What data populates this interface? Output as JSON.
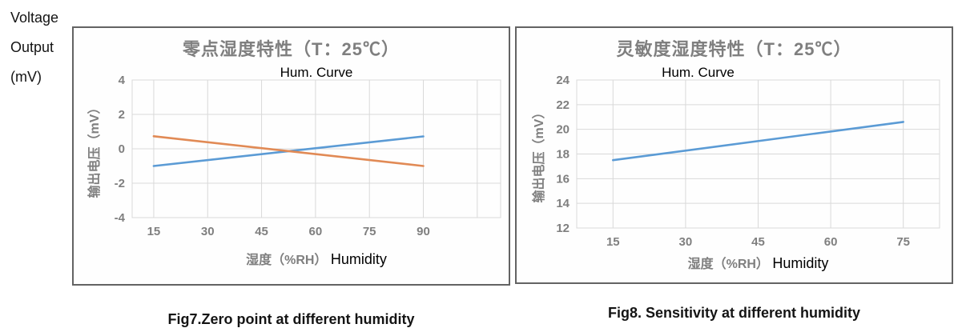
{
  "corner_label": {
    "lines": [
      "Voltage",
      "Output",
      "(mV)"
    ]
  },
  "chart_data": [
    {
      "type": "line",
      "title": "零点湿度特性（T：25℃）",
      "subtitle": "Hum. Curve",
      "ylabel": "输出电压（mV）",
      "xlabel": "湿度（%RH）",
      "xlabel_annotation": "Humidity",
      "caption": "Fig7.Zero point at different humidity",
      "xlim": [
        9,
        111.5
      ],
      "ylim": [
        -4,
        4
      ],
      "xticks": [
        15,
        30,
        45,
        60,
        75,
        90
      ],
      "xgrid": [
        15,
        30,
        45,
        60,
        75,
        90,
        105
      ],
      "yticks": [
        -4,
        -2,
        0,
        2,
        4
      ],
      "grid": true,
      "legend": "none",
      "series": [
        {
          "name": "zero-point-rising-line",
          "color": "#5B9BD5",
          "x": [
            15,
            90
          ],
          "y": [
            -1.0,
            0.72
          ]
        },
        {
          "name": "zero-point-falling-line",
          "color": "#E18A55",
          "x": [
            15,
            90
          ],
          "y": [
            0.73,
            -1.0
          ]
        }
      ]
    },
    {
      "type": "line",
      "title": "灵敏度湿度特性（T：25℃）",
      "subtitle": "Hum. Curve",
      "ylabel": "输出电压（mV）",
      "xlabel": "湿度（%RH）",
      "xlabel_annotation": "Humidity",
      "caption": "Fig8. Sensitivity at different humidity",
      "xlim": [
        7.5,
        82.5
      ],
      "ylim": [
        12,
        24
      ],
      "xticks": [
        15,
        30,
        45,
        60,
        75
      ],
      "xgrid": [
        15,
        30,
        45,
        60,
        75
      ],
      "yticks": [
        12,
        14,
        16,
        18,
        20,
        22,
        24
      ],
      "grid": true,
      "legend": "none",
      "series": [
        {
          "name": "sensitivity-line",
          "color": "#5B9BD5",
          "x": [
            15,
            75
          ],
          "y": [
            17.5,
            20.6
          ]
        }
      ]
    }
  ]
}
